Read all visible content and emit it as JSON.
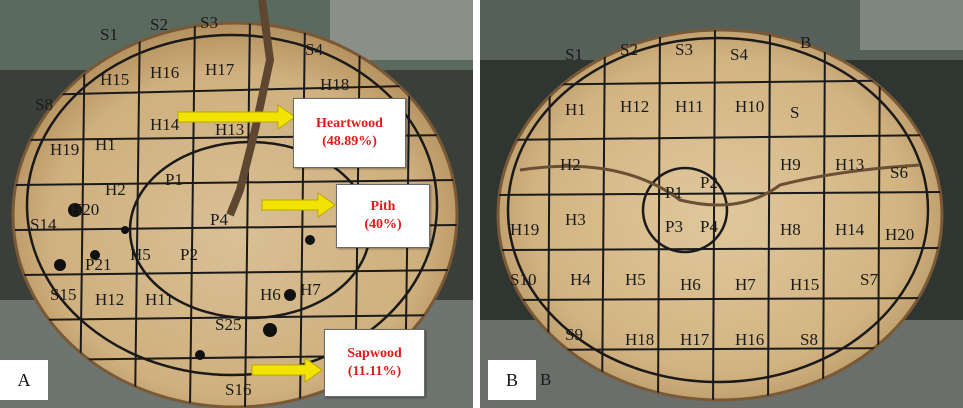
{
  "panel_a": {
    "letter": "A",
    "callouts": [
      {
        "name": "Heartwood",
        "value": "(48.89%)"
      },
      {
        "name": "Pith",
        "value": "(40%)"
      },
      {
        "name": "Sapwood",
        "value": "(11.11%)"
      }
    ],
    "grid_labels": [
      "S1",
      "S2",
      "S3",
      "S4",
      "S8",
      "H15",
      "H16",
      "H17",
      "H18",
      "H19",
      "H1",
      "H14",
      "H13",
      "H2",
      "P1",
      "P4",
      "P2",
      "H5",
      "H6",
      "H7",
      "H12",
      "H11",
      "S25",
      "H20",
      "P21",
      "S15",
      "S14",
      "S16"
    ]
  },
  "panel_b": {
    "letter": "B",
    "grid_labels": [
      "S1",
      "S2",
      "S3",
      "S4",
      "B",
      "H1",
      "H12",
      "H11",
      "H10",
      "S",
      "H2",
      "P1",
      "P2",
      "P3",
      "P4",
      "H9",
      "H13",
      "S6",
      "H19",
      "H3",
      "H8",
      "H14",
      "H20",
      "S10",
      "H4",
      "H5",
      "H6",
      "H7",
      "H15",
      "S7",
      "S9",
      "H18",
      "H17",
      "H16",
      "S8",
      "B"
    ]
  },
  "colors": {
    "callout_text": "#e21a1a",
    "arrow": "#f2e400",
    "wood": "#d6b88a",
    "ink": "#1a1a1a"
  }
}
